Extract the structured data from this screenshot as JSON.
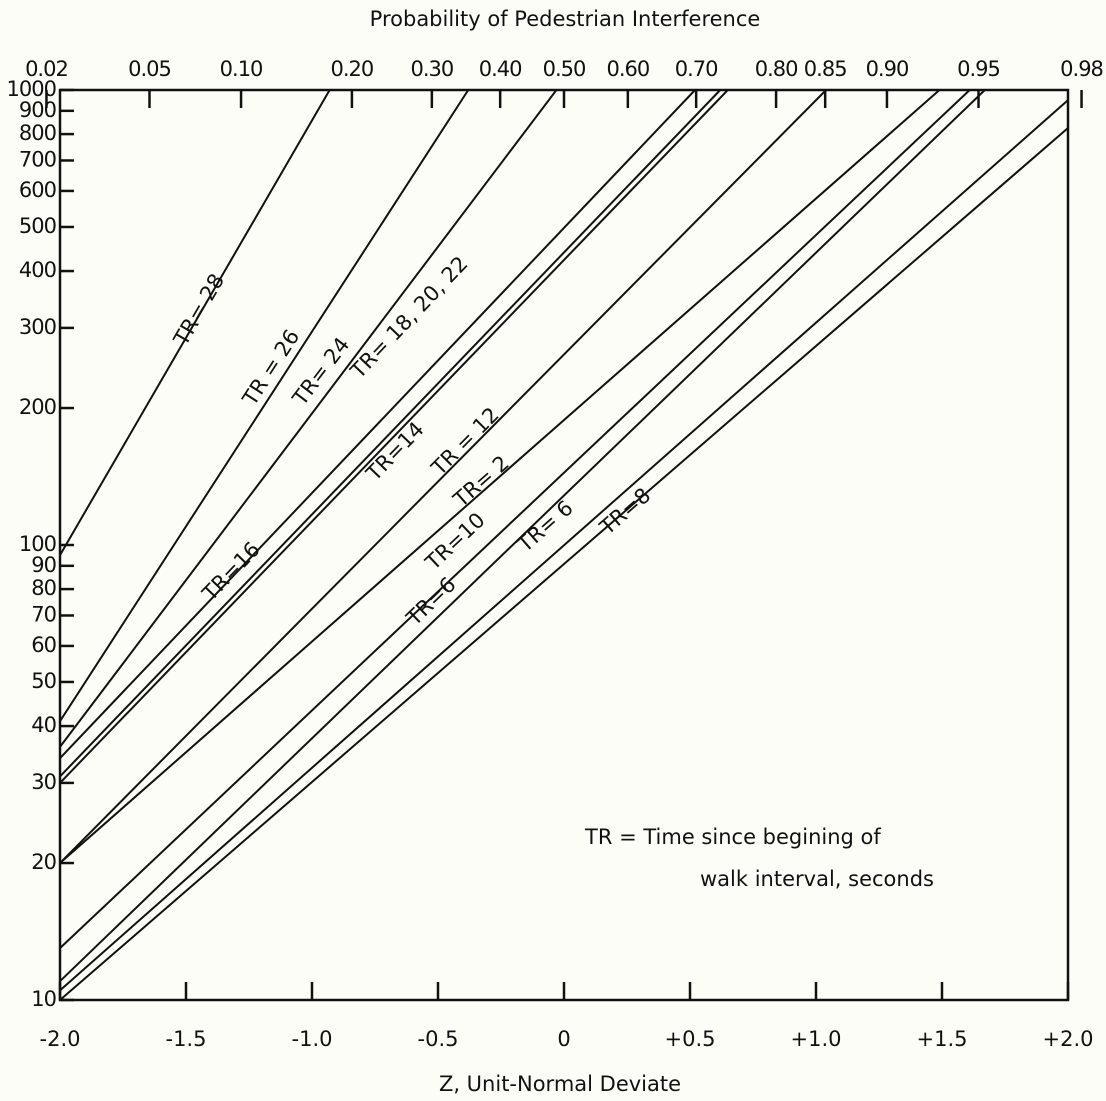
{
  "chart_data": {
    "type": "line",
    "title": "Probability of Pedestrian Interference",
    "x_label": "Z, Unit-Normal Deviate",
    "annotations": [
      "TR = Time since begining of",
      "walk interval, seconds"
    ],
    "xlim": [
      -2,
      2
    ],
    "xticks": [
      {
        "value": -2,
        "label": "-2.0"
      },
      -1.5,
      {
        "value": -1,
        "label": "-1.0"
      },
      -0.5,
      0,
      {
        "value": 0.5,
        "label": "+0.5"
      },
      {
        "value": 1,
        "label": "+1.0"
      },
      {
        "value": 1.5,
        "label": "+1.5"
      },
      {
        "value": 2,
        "label": "+2.0"
      }
    ],
    "x2ticks": [
      0.02,
      0.05,
      {
        "value": 0.1,
        "label": "0.10"
      },
      {
        "value": 0.2,
        "label": "0.20"
      },
      {
        "value": 0.3,
        "label": "0.30"
      },
      {
        "value": 0.4,
        "label": "0.40"
      },
      {
        "value": 0.5,
        "label": "0.50"
      },
      {
        "value": 0.6,
        "label": "0.60"
      },
      {
        "value": 0.7,
        "label": "0.70"
      },
      {
        "value": 0.8,
        "label": "0.80"
      },
      0.85,
      {
        "value": 0.9,
        "label": "0.90"
      },
      0.95,
      0.98
    ],
    "ylim": [
      10,
      1000
    ],
    "yscale": "log",
    "yticks": [
      10,
      20,
      30,
      40,
      50,
      60,
      70,
      80,
      90,
      100,
      200,
      300,
      400,
      500,
      600,
      700,
      800,
      900,
      1000
    ],
    "series": [
      {
        "name": "TR= 28",
        "color": "#111111",
        "x": [
          -2,
          -0.93
        ],
        "values": [
          95,
          1000
        ]
      },
      {
        "name": "TR = 26",
        "color": "#111111",
        "x": [
          -2,
          -0.38
        ],
        "values": [
          41,
          1000
        ]
      },
      {
        "name": "TR= 24",
        "color": "#111111",
        "x": [
          -2,
          -0.03
        ],
        "values": [
          36,
          1000
        ]
      },
      {
        "name": "TR= 18, 20, 22",
        "color": "#111111",
        "x": [
          -2,
          0.52
        ],
        "values": [
          34,
          1000
        ]
      },
      {
        "name": "TR=16",
        "color": "#111111",
        "x": [
          -2,
          0.62
        ],
        "values": [
          31,
          1000
        ]
      },
      {
        "name": "TR=14",
        "color": "#111111",
        "x": [
          -2,
          0.65
        ],
        "values": [
          30,
          1000
        ]
      },
      {
        "name": "TR = 12",
        "color": "#111111",
        "x": [
          -2,
          1.04
        ],
        "values": [
          20,
          1000
        ]
      },
      {
        "name": "TR= 2",
        "color": "#111111",
        "x": [
          -2,
          1.49
        ],
        "values": [
          20,
          1000
        ]
      },
      {
        "name": "TR=10",
        "color": "#111111",
        "x": [
          -2,
          1.61
        ],
        "values": [
          13,
          1000
        ]
      },
      {
        "name": "TR=6",
        "color": "#111111",
        "x": [
          -2,
          1.67
        ],
        "values": [
          11,
          1000
        ]
      },
      {
        "name": "TR= 6",
        "color": "#111111",
        "x": [
          -2,
          2
        ],
        "values": [
          10.5,
          950
        ]
      },
      {
        "name": "TR=8",
        "color": "#111111",
        "x": [
          -2,
          2
        ],
        "values": [
          10,
          825
        ]
      }
    ]
  }
}
